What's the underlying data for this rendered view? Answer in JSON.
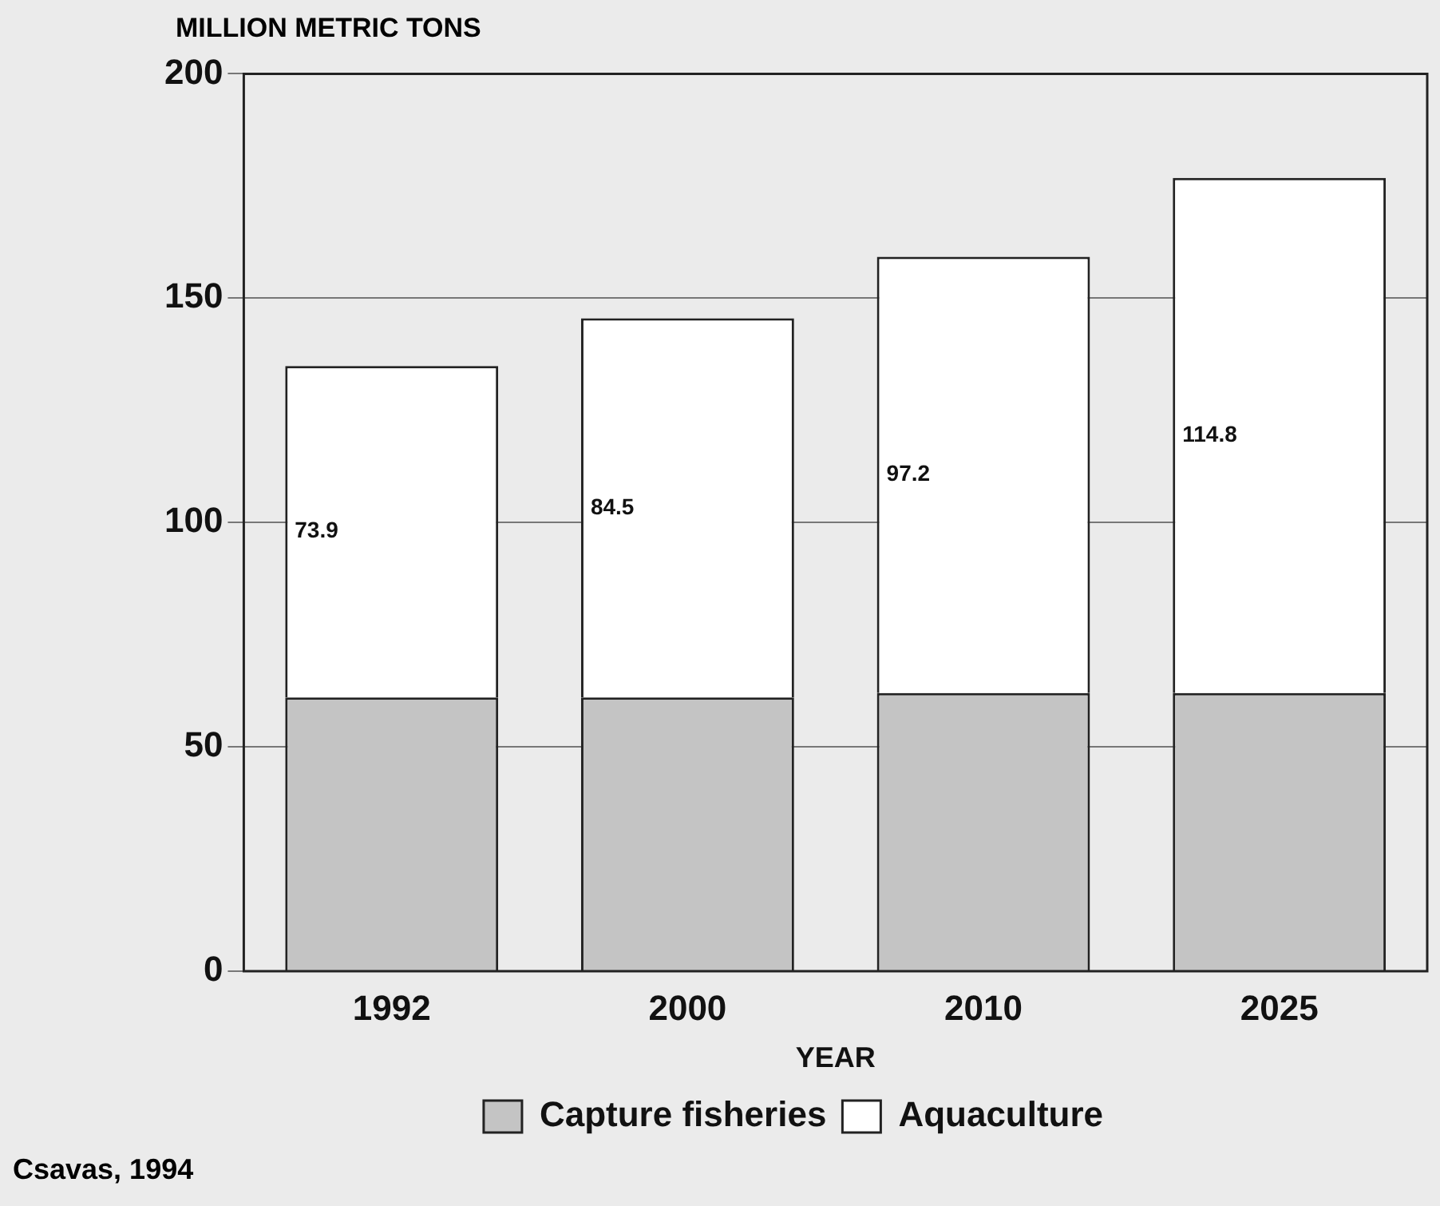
{
  "chart_data": {
    "type": "bar",
    "stacked": true,
    "ylabel": "MILLION METRIC TONS",
    "xlabel": "YEAR",
    "categories": [
      "1992",
      "2000",
      "2010",
      "2025"
    ],
    "series": [
      {
        "name": "Capture fisheries",
        "color": "#c4c4c4",
        "values": [
          61,
          61,
          62,
          62
        ]
      },
      {
        "name": "Aquaculture",
        "color": "#ffffff",
        "values": [
          73.9,
          84.5,
          97.2,
          114.8
        ],
        "value_labels": [
          "73.9",
          "84.5",
          "97.2",
          "114.8"
        ]
      }
    ],
    "ylim": [
      0,
      200
    ],
    "yticks": [
      0,
      50,
      100,
      150,
      200
    ],
    "grid": "y",
    "legend": "bottom",
    "annotations": [
      "Csavas, 1994"
    ]
  }
}
